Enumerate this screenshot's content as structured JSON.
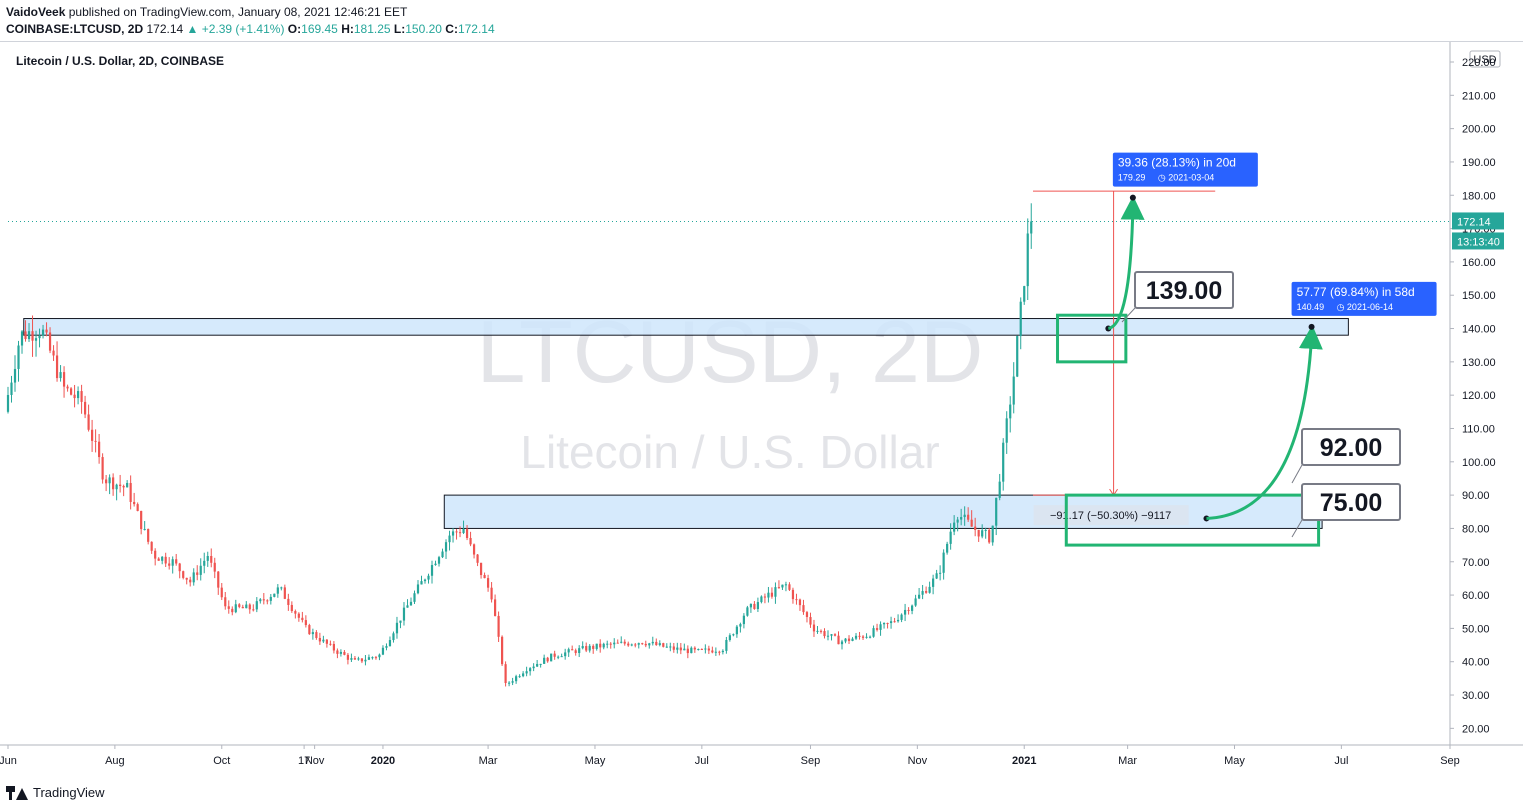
{
  "header": {
    "author": "VaidoVeek",
    "published_text": "published on TradingView.com, January 08, 2021 12:46:21 EET",
    "symbol": "COINBASE:LTCUSD, 2D",
    "last": "172.14",
    "change": "▲ +2.39 (+1.41%)",
    "o_label": "O:",
    "o_value": "169.45",
    "h_label": "H:",
    "h_value": "181.25",
    "l_label": "L:",
    "l_value": "150.20",
    "c_label": "C:",
    "c_value": "172.14"
  },
  "footer": {
    "logo_text": "TradingView"
  },
  "chart_data": {
    "type": "candlestick",
    "title": "Litecoin / U.S. Dollar, 2D, COINBASE",
    "watermark_symbol": "LTCUSD, 2D",
    "watermark_name": "Litecoin / U.S. Dollar",
    "currency_label": "USD",
    "y_ticks": [
      "20.00",
      "30.00",
      "40.00",
      "50.00",
      "60.00",
      "70.00",
      "80.00",
      "90.00",
      "100.00",
      "110.00",
      "120.00",
      "130.00",
      "140.00",
      "150.00",
      "160.00",
      "170.00",
      "180.00",
      "190.00",
      "200.00",
      "210.00",
      "220.00"
    ],
    "y_range": [
      15,
      226
    ],
    "x_ticks": [
      "Jun",
      "Aug",
      "Oct",
      "17",
      "Nov",
      "2020",
      "Mar",
      "May",
      "Jul",
      "Sep",
      "Nov",
      "2021",
      "Mar",
      "May",
      "Jul",
      "Sep"
    ],
    "x_tick_dates": [
      "2019-06-01",
      "2019-08-01",
      "2019-10-01",
      "2019-11-17",
      "2019-11-23",
      "2020-01-01",
      "2020-03-01",
      "2020-05-01",
      "2020-07-01",
      "2020-09-01",
      "2020-11-01",
      "2021-01-01",
      "2021-03-01",
      "2021-05-01",
      "2021-07-01",
      "2021-09-01"
    ],
    "x_range": [
      "2019-06-01",
      "2021-09-01"
    ],
    "price_path": [
      [
        "2019-06-01",
        115
      ],
      [
        "2019-06-10",
        138
      ],
      [
        "2019-06-22",
        140
      ],
      [
        "2019-07-05",
        122
      ],
      [
        "2019-07-15",
        118
      ],
      [
        "2019-07-28",
        95
      ],
      [
        "2019-08-10",
        92
      ],
      [
        "2019-08-25",
        72
      ],
      [
        "2019-09-05",
        70
      ],
      [
        "2019-09-15",
        64
      ],
      [
        "2019-09-25",
        72
      ],
      [
        "2019-10-05",
        56
      ],
      [
        "2019-10-20",
        56
      ],
      [
        "2019-11-05",
        62
      ],
      [
        "2019-11-20",
        50
      ],
      [
        "2019-12-05",
        44
      ],
      [
        "2019-12-18",
        40
      ],
      [
        "2020-01-01",
        42
      ],
      [
        "2020-01-15",
        55
      ],
      [
        "2020-01-30",
        68
      ],
      [
        "2020-02-10",
        78
      ],
      [
        "2020-02-18",
        80
      ],
      [
        "2020-02-25",
        70
      ],
      [
        "2020-03-05",
        60
      ],
      [
        "2020-03-13",
        33
      ],
      [
        "2020-03-25",
        38
      ],
      [
        "2020-04-10",
        42
      ],
      [
        "2020-04-28",
        44
      ],
      [
        "2020-05-10",
        45
      ],
      [
        "2020-05-30",
        46
      ],
      [
        "2020-06-15",
        44
      ],
      [
        "2020-07-01",
        43
      ],
      [
        "2020-07-15",
        44
      ],
      [
        "2020-07-28",
        55
      ],
      [
        "2020-08-10",
        60
      ],
      [
        "2020-08-20",
        63
      ],
      [
        "2020-09-05",
        50
      ],
      [
        "2020-09-20",
        46
      ],
      [
        "2020-10-05",
        48
      ],
      [
        "2020-10-20",
        52
      ],
      [
        "2020-11-01",
        58
      ],
      [
        "2020-11-15",
        66
      ],
      [
        "2020-11-25",
        85
      ],
      [
        "2020-12-05",
        80
      ],
      [
        "2020-12-15",
        77
      ],
      [
        "2020-12-20",
        96
      ],
      [
        "2020-12-28",
        126
      ],
      [
        "2021-01-02",
        150
      ],
      [
        "2021-01-06",
        172
      ]
    ],
    "current_price": "172.14",
    "countdown": "13:13:40",
    "zones": [
      {
        "name": "upper-zone",
        "from_date": "2019-06-10",
        "to_date": "2021-07-05",
        "low": 138,
        "high": 143
      },
      {
        "name": "lower-zone",
        "from_date": "2020-02-05",
        "to_date": "2021-06-20",
        "low": 80,
        "high": 90
      }
    ],
    "measure": {
      "date": "2021-02-21",
      "from_price": 181.25,
      "to_price": 90,
      "label": "−91.17 (−50.30%) −9117"
    },
    "projections": [
      {
        "label": "39.36 (28.13%) in 20d",
        "sublabel": "179.29",
        "date": "2021-03-04",
        "from_date": "2021-02-18",
        "from_price": 140,
        "to_price": 179.29
      },
      {
        "label": "57.77 (69.84%) in 58d",
        "sublabel": "140.49",
        "date": "2021-06-14",
        "from_date": "2021-04-15",
        "from_price": 83,
        "to_price": 140.49
      }
    ],
    "callouts": [
      "139.00",
      "92.00",
      "75.00"
    ],
    "colors": {
      "up": "#26a69a",
      "down": "#ef5350",
      "zone_fill": "#cfe6fb",
      "highlight": "#22b573",
      "label_blue": "#2962ff",
      "price_tag": "#26a69a"
    }
  }
}
